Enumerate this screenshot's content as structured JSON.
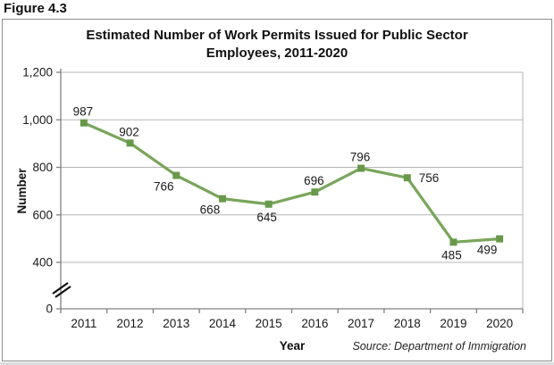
{
  "figure_label": "Figure 4.3",
  "source_note": "Source: Department of Immigration",
  "chart_data": {
    "type": "line",
    "title": "Estimated Number of Work Permits Issued for Public Sector Employees, 2011-2020",
    "title_lines": [
      "Estimated Number of Work Permits Issued for Public Sector",
      "Employees, 2011-2020"
    ],
    "xlabel": "Year",
    "ylabel": "Number",
    "categories": [
      "2011",
      "2012",
      "2013",
      "2014",
      "2015",
      "2016",
      "2017",
      "2018",
      "2019",
      "2020"
    ],
    "values": [
      987,
      902,
      766,
      668,
      645,
      696,
      796,
      756,
      485,
      499
    ],
    "point_label_pos": [
      "above",
      "above",
      "below-left",
      "below-left",
      "below",
      "above",
      "above",
      "right",
      "below",
      "below-left"
    ],
    "ytick_values": [
      0,
      400,
      600,
      800,
      1000,
      1200
    ],
    "ytick_labels": [
      "0",
      "400",
      "600",
      "800",
      "1,000",
      "1,200"
    ],
    "ylim": [
      0,
      1200
    ],
    "axis_break_between": [
      0,
      400
    ],
    "grid": "horizontal",
    "legend": "none",
    "line_color": "#79a55b",
    "marker_color": "#68994a",
    "marker_shape": "square",
    "gridline_color": "#b5b5b5",
    "axis_color": "#808080",
    "label_color": "#1a1a1a"
  }
}
